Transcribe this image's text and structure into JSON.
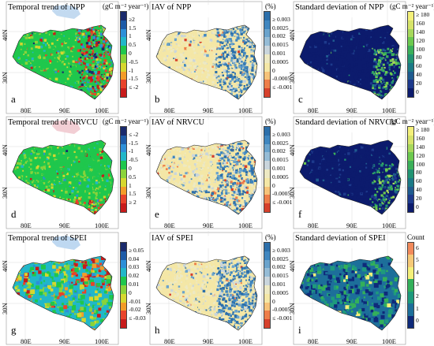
{
  "panels": [
    {
      "id": "a",
      "title": "Temporal trend of NPP",
      "unit": "(gC m⁻² year⁻¹)",
      "letter": "a",
      "lat": [
        "40N",
        "30N"
      ],
      "lon": [
        "80E",
        "90E",
        "100E"
      ],
      "colorbar": {
        "labels": [
          "≥2",
          "1.5",
          "1",
          "0.5",
          "0",
          "-0.5",
          "-1",
          "-1.5",
          "≤ -2"
        ],
        "colors": [
          "#1a2a6c",
          "#1d5ba8",
          "#2d8fd8",
          "#21b7c9",
          "#1fc74d",
          "#8ad33a",
          "#d6d72f",
          "#f39c28",
          "#e8432a",
          "#c81b1b"
        ]
      },
      "map_style": "trend_npp"
    },
    {
      "id": "b",
      "title": "IAV of NPP",
      "unit": "(%)",
      "letter": "b",
      "lat": [
        "40N",
        "30N"
      ],
      "lon": [
        "80E",
        "90E",
        "100E"
      ],
      "colorbar": {
        "labels": [
          "≥ 0.003",
          "0.0025",
          "0.002",
          "0.0015",
          "0.001",
          "0.0005",
          "0",
          "-0.0005",
          "≤ -0.001"
        ],
        "colors": [
          "#2c6faa",
          "#3f86bf",
          "#6aa3cc",
          "#95bcd6",
          "#c9d5dc",
          "#ede9c3",
          "#f4e7a6",
          "#f6c37a",
          "#ee7e4a",
          "#d6402b"
        ]
      },
      "map_style": "iav_npp"
    },
    {
      "id": "c",
      "title": "Standard deviation of NPP",
      "unit": "(gC m⁻² year⁻¹)",
      "letter": "c",
      "lat": [
        "40N",
        "30N"
      ],
      "lon": [
        "80E",
        "90E",
        "100E"
      ],
      "colorbar": {
        "labels": [
          "≥ 180",
          "160",
          "140",
          "120",
          "100",
          "80",
          "60",
          "40",
          "20",
          "0"
        ],
        "colors": [
          "#f4f07a",
          "#d7e46a",
          "#a7d85c",
          "#6cc94f",
          "#3bb05a",
          "#229473",
          "#1b7a86",
          "#1f5b8f",
          "#1d3a8c",
          "#0c1b6d"
        ]
      },
      "map_style": "sd_npp"
    },
    {
      "id": "d",
      "title": "Temporal trend of NRVCU",
      "unit": "(gC m⁻² year⁻¹)",
      "letter": "d",
      "lat": [
        "40N",
        "30N"
      ],
      "lon": [
        "80E",
        "90E",
        "100E"
      ],
      "colorbar": {
        "labels": [
          "≤ -2",
          "-1.5",
          "-1",
          "-0.5",
          "0",
          "0.5",
          "1",
          "1.5",
          "≥ 2"
        ],
        "colors": [
          "#1a2a6c",
          "#1d5ba8",
          "#2d8fd8",
          "#21b7c9",
          "#1fc74d",
          "#8ad33a",
          "#d6d72f",
          "#f39c28",
          "#e8432a",
          "#c81b1b"
        ]
      },
      "map_style": "trend_nrvcu"
    },
    {
      "id": "e",
      "title": "IAV of NRVCU",
      "unit": "(%)",
      "letter": "e",
      "lat": [
        "40N",
        "30N"
      ],
      "lon": [
        "80E",
        "90E",
        "100E"
      ],
      "colorbar": {
        "labels": [
          "≥ 0.003",
          "0.0025",
          "0.002",
          "0.0015",
          "0.001",
          "0.0005",
          "0",
          "-0.0005",
          "≤ -0.001"
        ],
        "colors": [
          "#2c6faa",
          "#3f86bf",
          "#6aa3cc",
          "#95bcd6",
          "#c9d5dc",
          "#ede9c3",
          "#f4e7a6",
          "#f6c37a",
          "#ee7e4a",
          "#d6402b"
        ]
      },
      "map_style": "iav_nrvcu"
    },
    {
      "id": "f",
      "title": "Standard deviation of NRVCU",
      "unit": "(gC m⁻² year⁻¹)",
      "letter": "f",
      "lat": [
        "40N",
        "30N"
      ],
      "lon": [
        "80E",
        "90E",
        "100E"
      ],
      "colorbar": {
        "labels": [
          "≥ 180",
          "160",
          "140",
          "120",
          "100",
          "80",
          "60",
          "40",
          "20",
          "0"
        ],
        "colors": [
          "#f4f07a",
          "#d7e46a",
          "#a7d85c",
          "#6cc94f",
          "#3bb05a",
          "#229473",
          "#1b7a86",
          "#1f5b8f",
          "#1d3a8c",
          "#0c1b6d"
        ]
      },
      "map_style": "sd_nrvcu"
    },
    {
      "id": "g",
      "title": "Temporal trend of SPEI",
      "unit": "",
      "letter": "g",
      "lat": [
        "40N",
        "30N"
      ],
      "lon": [
        "80E",
        "90E",
        "100E"
      ],
      "colorbar": {
        "labels": [
          "≥ 0.05",
          "0.04",
          "0.03",
          "0.02",
          "0.01",
          "0",
          "-0.01",
          "-0.02",
          "≤ -0.03"
        ],
        "colors": [
          "#1a2a6c",
          "#1d5ba8",
          "#2d8fd8",
          "#21b7c9",
          "#1fc74d",
          "#8ad33a",
          "#d6d72f",
          "#f39c28",
          "#e8432a",
          "#c81b1b"
        ]
      },
      "map_style": "trend_spei"
    },
    {
      "id": "h",
      "title": "IAV of SPEI",
      "unit": "(%)",
      "letter": "h",
      "lat": [
        "40N",
        "30N"
      ],
      "lon": [
        "80E",
        "90E",
        "100E"
      ],
      "colorbar": {
        "labels": [
          "≥ 0.003",
          "0.0025",
          "0.002",
          "0.0015",
          "0.001",
          "0.0005",
          "0",
          "-0.0005",
          "≤ -0.001"
        ],
        "colors": [
          "#2c6faa",
          "#3f86bf",
          "#6aa3cc",
          "#95bcd6",
          "#c9d5dc",
          "#ede9c3",
          "#f4e7a6",
          "#f6c37a",
          "#ee7e4a",
          "#d6402b"
        ]
      },
      "map_style": "iav_spei"
    },
    {
      "id": "i",
      "title": "Standard deviation of SPEI",
      "unit": "Count",
      "letter": "i",
      "lat": [
        "40N",
        "30N"
      ],
      "lon": [
        "80E",
        "90E",
        "100E"
      ],
      "colorbar": {
        "labels": [
          "6",
          "5",
          "4",
          "3",
          "2",
          "1",
          "0"
        ],
        "colors": [
          "#f28a5b",
          "#f6c977",
          "#f5f07a",
          "#33b05a",
          "#1e9a7d",
          "#1d6f9a",
          "#0e2a7a"
        ]
      },
      "map_style": "sd_spei"
    }
  ]
}
